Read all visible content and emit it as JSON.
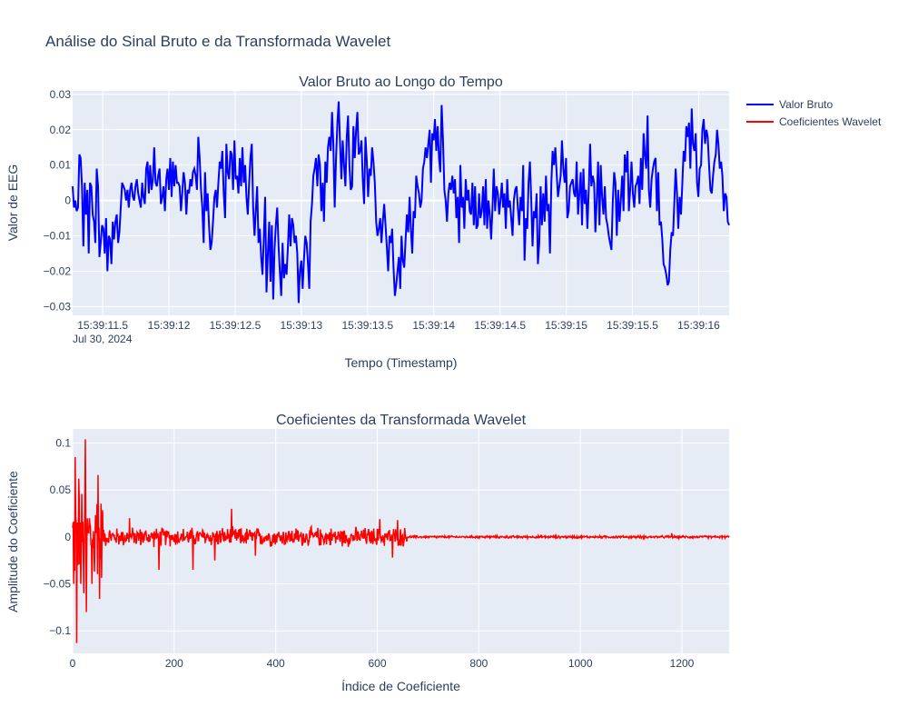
{
  "title": "Análise do Sinal Bruto e da Transformada Wavelet",
  "legend": {
    "placement": "top-right",
    "items": [
      {
        "label": "Valor Bruto",
        "color": "#0000ff"
      },
      {
        "label": "Coeficientes Wavelet",
        "color": "#ff0000"
      }
    ]
  },
  "colors": {
    "plot_bg": "#e5ecf6",
    "grid": "#ffffff",
    "text": "#2a3f5f",
    "raw": "#0000ff",
    "wavelet": "#ff0000"
  },
  "chart_data": [
    {
      "type": "line",
      "title": "Valor Bruto ao Longo do Tempo",
      "xlabel": "Tempo (Timestamp)",
      "ylabel": "Valor de EEG",
      "x_date_label": "Jul 30, 2024",
      "x_start": "15:39:11.273",
      "x_end": "15:39:16.23",
      "x_ticks": [
        {
          "t": 11.5,
          "label": "15:39:11.5"
        },
        {
          "t": 12.0,
          "label": "15:39:12"
        },
        {
          "t": 12.5,
          "label": "15:39:12.5"
        },
        {
          "t": 13.0,
          "label": "15:39:13"
        },
        {
          "t": 13.5,
          "label": "15:39:13.5"
        },
        {
          "t": 14.0,
          "label": "15:39:14"
        },
        {
          "t": 14.5,
          "label": "15:39:14.5"
        },
        {
          "t": 15.0,
          "label": "15:39:15"
        },
        {
          "t": 15.5,
          "label": "15:39:15.5"
        },
        {
          "t": 16.0,
          "label": "15:39:16"
        }
      ],
      "x_range_seconds": [
        11.273,
        16.23
      ],
      "ylim": [
        -0.0325,
        0.031
      ],
      "y_ticks": [
        {
          "v": 0.03,
          "label": "0.03"
        },
        {
          "v": 0.02,
          "label": "0.02"
        },
        {
          "v": 0.01,
          "label": "0.01"
        },
        {
          "v": 0,
          "label": "0"
        },
        {
          "v": -0.01,
          "label": "−0.01"
        },
        {
          "v": -0.02,
          "label": "−0.02"
        },
        {
          "v": -0.03,
          "label": "−0.03"
        }
      ],
      "grid": true,
      "series": [
        {
          "name": "Valor Bruto",
          "color": "#0000ff",
          "y": [
            0.004,
            -0.002,
            0.0,
            -0.003,
            -0.002,
            0.013,
            0.012,
            0.004,
            -0.013,
            0.005,
            -0.004,
            0.003,
            -0.015,
            0.005,
            0.004,
            -0.004,
            -0.006,
            -0.012,
            0.009,
            0.004,
            -0.016,
            -0.012,
            -0.007,
            -0.008,
            -0.015,
            -0.005,
            -0.02,
            -0.01,
            -0.011,
            -0.018,
            -0.006,
            -0.011,
            -0.006,
            -0.004,
            -0.012,
            -0.009,
            -0.002,
            0.005,
            0.004,
            0.003,
            0.0,
            0.003,
            -0.002,
            0.003,
            0.005,
            0.001,
            0.0,
            0.004,
            0.006,
            0.002,
            0.0,
            -0.002,
            0.005,
            0.001,
            -0.001,
            0.009,
            0.011,
            0.002,
            0.01,
            0.003,
            0.006,
            0.015,
            0.005,
            0.004,
            0.007,
            0.009,
            -0.001,
            0.001,
            0.004,
            -0.003,
            0.006,
            0.009,
            0.003,
            0.012,
            0.001,
            0.011,
            0.004,
            0.01,
            0.005,
            0.005,
            0.004,
            -0.003,
            0.002,
            0.008,
            0.005,
            -0.004,
            0.003,
            0.002,
            0.006,
            0.004,
            0.008,
            0.009,
            0.007,
            0.003,
            0.018,
            0.012,
            0.003,
            -0.002,
            -0.012,
            0.008,
            -0.003,
            0.002,
            -0.007,
            -0.014,
            -0.012,
            -0.006,
            0.001,
            0.003,
            -0.002,
            0.005,
            0.011,
            0.009,
            0.014,
            0.002,
            -0.005,
            0.016,
            0.008,
            0.006,
            0.014,
            0.013,
            0.003,
            0.017,
            0.006,
            0.007,
            0.002,
            0.012,
            0.004,
            0.015,
            0.005,
            0.01,
            0.001,
            -0.004,
            0.005,
            0.012,
            0.016,
            -0.002,
            -0.01,
            -0.003,
            0.004,
            -0.012,
            -0.008,
            -0.016,
            -0.021,
            -0.01,
            0.001,
            -0.026,
            -0.015,
            -0.006,
            -0.023,
            -0.007,
            -0.028,
            -0.014,
            -0.007,
            -0.002,
            -0.013,
            -0.02,
            -0.027,
            -0.012,
            -0.022,
            -0.018,
            -0.021,
            -0.013,
            -0.004,
            -0.013,
            -0.005,
            -0.007,
            -0.012,
            -0.01,
            -0.015,
            -0.029,
            -0.02,
            -0.017,
            -0.025,
            -0.017,
            -0.01,
            -0.012,
            -0.018,
            -0.025,
            -0.006,
            -0.001,
            0.007,
            0.009,
            0.012,
            0.004,
            0.013,
            0.01,
            -0.003,
            0.005,
            -0.006,
            0.011,
            0.005,
            0.015,
            0.018,
            0.014,
            0.025,
            0.016,
            -0.002,
            0.012,
            0.022,
            0.028,
            0.016,
            0.006,
            0.017,
            0.01,
            0.004,
            0.018,
            0.024,
            0.01,
            0.003,
            0.004,
            0.021,
            0.012,
            0.02,
            0.025,
            0.013,
            0.014,
            0.017,
            0.006,
            -0.001,
            0.018,
            0.011,
            0.001,
            0.009,
            0.007,
            0.015,
            0.011,
            0.005,
            -0.006,
            -0.01,
            -0.008,
            -0.005,
            -0.012,
            -0.006,
            -0.001,
            -0.007,
            -0.013,
            -0.02,
            -0.01,
            -0.012,
            -0.008,
            -0.019,
            -0.027,
            -0.024,
            -0.02,
            -0.016,
            -0.025,
            -0.01,
            -0.017,
            -0.019,
            -0.011,
            -0.004,
            -0.009,
            0.001,
            -0.008,
            -0.015,
            -0.003,
            -0.005,
            0.007,
            0.004,
            0.002,
            -0.002,
            0.0,
            0.009,
            0.011,
            0.015,
            0.012,
            0.016,
            0.02,
            0.005,
            0.019,
            0.017,
            0.023,
            0.014,
            0.021,
            0.012,
            0.008,
            0.027,
            0.017,
            0.003,
            0.0,
            -0.006,
            0.002,
            0.005,
            0.003,
            0.007,
            0.002,
            0.006,
            -0.005,
            0.001,
            -0.012,
            0.01,
            -0.002,
            0.001,
            -0.008,
            0.006,
            0.0,
            0.003,
            -0.003,
            -0.004,
            0.005,
            -0.007,
            0.004,
            -0.008,
            -0.007,
            0.002,
            -0.005,
            -0.003,
            0.004,
            -0.007,
            0.006,
            -0.008,
            0.0,
            -0.004,
            -0.011,
            -0.002,
            0.009,
            -0.003,
            0.004,
            0.002,
            -0.004,
            0.0,
            0.005,
            -0.002,
            0.002,
            -0.008,
            0.006,
            -0.002,
            0.0,
            -0.005,
            -0.01,
            0.0,
            0.003,
            0.004,
            -0.002,
            -0.007,
            0.001,
            -0.003,
            0.01,
            -0.017,
            -0.005,
            -0.008,
            0.005,
            0.011,
            0.0,
            -0.013,
            -0.003,
            -0.005,
            0.002,
            -0.018,
            -0.012,
            0.004,
            -0.007,
            0.002,
            -0.006,
            0.007,
            -0.003,
            -0.001,
            -0.015,
            0.005,
            0.014,
            0.01,
            0.015,
            0.008,
            0.001,
            0.004,
            0.007,
            0.017,
            0.009,
            0.005,
            0.012,
            -0.005,
            -0.003,
            0.004,
            0.005,
            0.006,
            0.002,
            0.001,
            0.011,
            -0.004,
            0.002,
            0.008,
            -0.007,
            0.009,
            -0.001,
            0.003,
            -0.008,
            0.003,
            0.016,
            0.004,
            0.007,
            0.005,
            -0.009,
            0.0,
            0.011,
            -0.007,
            0.01,
            0.001,
            -0.004,
            0.004,
            -0.005,
            -0.007,
            -0.01,
            -0.012,
            -0.014,
            0.0,
            0.008,
            0.005,
            -0.01,
            0.003,
            -0.006,
            0.0,
            0.007,
            -0.003,
            0.013,
            0.008,
            0.014,
            -0.003,
            0.003,
            0.011,
            0.002,
            -0.002,
            0.004,
            0.005,
            0.007,
            -0.001,
            0.012,
            0.003,
            0.019,
            0.013,
            0.009,
            0.024,
            0.003,
            -0.002,
            0.006,
            0.009,
            0.011,
            0.012,
            -0.003,
            0.008,
            -0.007,
            -0.006,
            -0.011,
            -0.018,
            -0.019,
            -0.021,
            -0.024,
            -0.023,
            -0.014,
            -0.009,
            -0.01,
            -0.001,
            0.009,
            0.002,
            -0.008,
            0.001,
            -0.004,
            0.005,
            0.014,
            0.011,
            0.021,
            0.018,
            0.022,
            0.009,
            0.026,
            0.016,
            0.014,
            0.019,
            0.005,
            0.001,
            0.009,
            0.01,
            0.02,
            0.023,
            0.016,
            0.02,
            0.018,
            0.01,
            0.003,
            0.002,
            0.007,
            0.011,
            0.013,
            0.02,
            0.016,
            0.009,
            0.011,
            0.007,
            -0.003,
            0.002,
            0.001,
            -0.006,
            -0.007
          ]
        }
      ]
    },
    {
      "type": "line",
      "title": "Coeficientes da Transformada Wavelet",
      "xlabel": "Índice de Coeficiente",
      "ylabel": "Amplitude do Coeficiente",
      "xlim": [
        0,
        1293
      ],
      "ylim": [
        -0.124,
        0.115
      ],
      "x_ticks": [
        {
          "v": 0,
          "label": "0"
        },
        {
          "v": 200,
          "label": "200"
        },
        {
          "v": 400,
          "label": "400"
        },
        {
          "v": 600,
          "label": "600"
        },
        {
          "v": 800,
          "label": "800"
        },
        {
          "v": 1000,
          "label": "1000"
        },
        {
          "v": 1200,
          "label": "1200"
        }
      ],
      "y_ticks": [
        {
          "v": 0.1,
          "label": "0.1"
        },
        {
          "v": 0.05,
          "label": "0.05"
        },
        {
          "v": 0,
          "label": "0"
        },
        {
          "v": -0.05,
          "label": "−0.05"
        },
        {
          "v": -0.1,
          "label": "−0.1"
        }
      ],
      "grid": true,
      "series": [
        {
          "name": "Coeficientes Wavelet",
          "color": "#ff0000",
          "segments": [
            {
              "x_from": 0,
              "x_to": 60,
              "amplitude": 0.06
            },
            {
              "x_from": 60,
              "x_to": 660,
              "amplitude": 0.012
            },
            {
              "x_from": 660,
              "x_to": 1293,
              "amplitude": 0.0015
            }
          ],
          "peaks": [
            {
              "x": 2,
              "y": -0.05
            },
            {
              "x": 5,
              "y": 0.085
            },
            {
              "x": 8,
              "y": -0.113
            },
            {
              "x": 12,
              "y": 0.062
            },
            {
              "x": 16,
              "y": -0.05
            },
            {
              "x": 22,
              "y": -0.06
            },
            {
              "x": 25,
              "y": 0.104
            },
            {
              "x": 27,
              "y": -0.08
            },
            {
              "x": 33,
              "y": 0.02
            },
            {
              "x": 38,
              "y": -0.05
            },
            {
              "x": 43,
              "y": -0.037
            },
            {
              "x": 48,
              "y": 0.035
            },
            {
              "x": 50,
              "y": 0.066
            },
            {
              "x": 53,
              "y": -0.066
            },
            {
              "x": 112,
              "y": 0.02
            },
            {
              "x": 170,
              "y": -0.035
            },
            {
              "x": 237,
              "y": -0.035
            },
            {
              "x": 280,
              "y": -0.025
            },
            {
              "x": 313,
              "y": 0.03
            },
            {
              "x": 360,
              "y": -0.02
            },
            {
              "x": 605,
              "y": 0.019
            },
            {
              "x": 630,
              "y": -0.022
            },
            {
              "x": 640,
              "y": 0.018
            },
            {
              "x": 1180,
              "y": 0.004
            }
          ]
        }
      ]
    }
  ]
}
